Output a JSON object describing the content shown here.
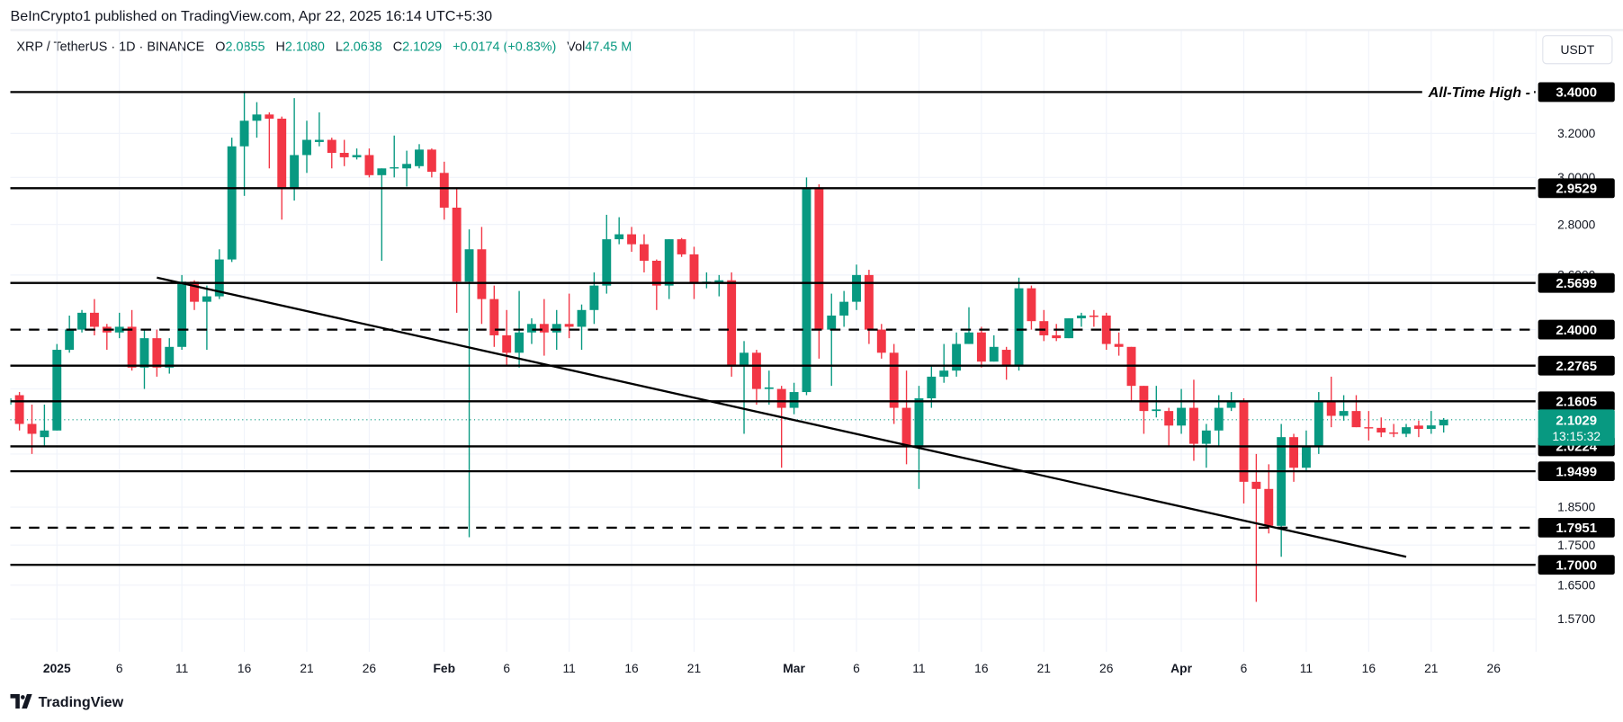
{
  "header": {
    "published": "BeInCrypto1 published on TradingView.com, Apr 22, 2025 16:14 UTC+5:30"
  },
  "legend": {
    "symbol": "XRP / TetherUS · 1D · BINANCE",
    "open_label": "O",
    "open": "2.0855",
    "high_label": "H",
    "high": "2.1080",
    "low_label": "L",
    "low": "2.0638",
    "close_label": "C",
    "close": "2.1029",
    "change": "+0.0174 (+0.83%)",
    "vol_label": "Vol",
    "vol": "47.45 M"
  },
  "currency_button": "USDT",
  "branding": "TradingView",
  "chart_data": {
    "type": "candlestick",
    "y_scale": "log",
    "ylim": [
      1.52,
      3.52
    ],
    "grid": true,
    "colors": {
      "up": "#089981",
      "down": "#F23645",
      "level": "#000000",
      "last_price": "#089981"
    },
    "x_ticks": [
      {
        "date": "2025-01-01",
        "label": "2025",
        "bold": true
      },
      {
        "date": "2025-01-06",
        "label": "6"
      },
      {
        "date": "2025-01-11",
        "label": "11"
      },
      {
        "date": "2025-01-16",
        "label": "16"
      },
      {
        "date": "2025-01-21",
        "label": "21"
      },
      {
        "date": "2025-01-26",
        "label": "26"
      },
      {
        "date": "2025-02-01",
        "label": "Feb",
        "bold": true
      },
      {
        "date": "2025-02-06",
        "label": "6"
      },
      {
        "date": "2025-02-11",
        "label": "11"
      },
      {
        "date": "2025-02-16",
        "label": "16"
      },
      {
        "date": "2025-02-21",
        "label": "21"
      },
      {
        "date": "2025-03-01",
        "label": "Mar",
        "bold": true
      },
      {
        "date": "2025-03-06",
        "label": "6"
      },
      {
        "date": "2025-03-11",
        "label": "11"
      },
      {
        "date": "2025-03-16",
        "label": "16"
      },
      {
        "date": "2025-03-21",
        "label": "21"
      },
      {
        "date": "2025-03-26",
        "label": "26"
      },
      {
        "date": "2025-04-01",
        "label": "Apr",
        "bold": true
      },
      {
        "date": "2025-04-06",
        "label": "6"
      },
      {
        "date": "2025-04-11",
        "label": "11"
      },
      {
        "date": "2025-04-16",
        "label": "16"
      },
      {
        "date": "2025-04-21",
        "label": "21"
      },
      {
        "date": "2025-04-26",
        "label": "26"
      }
    ],
    "y_ticks": [
      "3.2000",
      "3.0000",
      "2.8000",
      "2.6000",
      "1.8500",
      "1.7500",
      "1.6500",
      "1.5700"
    ],
    "levels": [
      {
        "price": 3.4,
        "label": "3.4000",
        "style": "solid",
        "annotation": "All-Time High"
      },
      {
        "price": 2.9529,
        "label": "2.9529",
        "style": "solid"
      },
      {
        "price": 2.5699,
        "label": "2.5699",
        "style": "solid"
      },
      {
        "price": 2.4,
        "label": "2.4000",
        "style": "dashed"
      },
      {
        "price": 2.2765,
        "label": "2.2765",
        "style": "solid"
      },
      {
        "price": 2.1605,
        "label": "2.1605",
        "style": "solid"
      },
      {
        "price": 2.0224,
        "label": "2.0224",
        "style": "solid"
      },
      {
        "price": 1.9499,
        "label": "1.9499",
        "style": "solid"
      },
      {
        "price": 1.7951,
        "label": "1.7951",
        "style": "dashed"
      },
      {
        "price": 1.7,
        "label": "1.7000",
        "style": "solid"
      }
    ],
    "last_price": {
      "price": 2.1029,
      "label": "2.1029",
      "countdown": "13:15:32"
    },
    "trendline": {
      "start": [
        "2025-01-09",
        2.59
      ],
      "end": [
        "2025-04-19",
        1.72
      ]
    },
    "candles_columns": [
      "date",
      "open",
      "high",
      "low",
      "close"
    ],
    "candles": [
      [
        "2024-12-28",
        2.15,
        2.18,
        2.13,
        2.17
      ],
      [
        "2024-12-29",
        2.18,
        2.19,
        2.07,
        2.09
      ],
      [
        "2024-12-30",
        2.09,
        2.15,
        2.0,
        2.06
      ],
      [
        "2024-12-31",
        2.05,
        2.15,
        2.02,
        2.07
      ],
      [
        "2025-01-01",
        2.07,
        2.35,
        2.07,
        2.33
      ],
      [
        "2025-01-02",
        2.33,
        2.45,
        2.32,
        2.4
      ],
      [
        "2025-01-03",
        2.4,
        2.47,
        2.39,
        2.46
      ],
      [
        "2025-01-04",
        2.46,
        2.51,
        2.38,
        2.41
      ],
      [
        "2025-01-05",
        2.41,
        2.42,
        2.33,
        2.39
      ],
      [
        "2025-01-06",
        2.39,
        2.46,
        2.37,
        2.41
      ],
      [
        "2025-01-07",
        2.41,
        2.47,
        2.26,
        2.27
      ],
      [
        "2025-01-08",
        2.27,
        2.4,
        2.2,
        2.37
      ],
      [
        "2025-01-09",
        2.37,
        2.4,
        2.24,
        2.27
      ],
      [
        "2025-01-10",
        2.27,
        2.37,
        2.25,
        2.34
      ],
      [
        "2025-01-11",
        2.34,
        2.6,
        2.33,
        2.575
      ],
      [
        "2025-01-12",
        2.575,
        2.58,
        2.47,
        2.5
      ],
      [
        "2025-01-13",
        2.5,
        2.56,
        2.33,
        2.52
      ],
      [
        "2025-01-14",
        2.52,
        2.7,
        2.51,
        2.66
      ],
      [
        "2025-01-15",
        2.66,
        3.18,
        2.65,
        3.14
      ],
      [
        "2025-01-16",
        3.14,
        3.4,
        2.92,
        3.26
      ],
      [
        "2025-01-17",
        3.26,
        3.35,
        3.18,
        3.29
      ],
      [
        "2025-01-18",
        3.29,
        3.3,
        3.04,
        3.27
      ],
      [
        "2025-01-19",
        3.27,
        3.28,
        2.82,
        2.955
      ],
      [
        "2025-01-20",
        2.955,
        3.37,
        2.9,
        3.1
      ],
      [
        "2025-01-21",
        3.1,
        3.26,
        3.02,
        3.17
      ],
      [
        "2025-01-22",
        3.16,
        3.3,
        3.14,
        3.17
      ],
      [
        "2025-01-23",
        3.17,
        3.18,
        3.04,
        3.11
      ],
      [
        "2025-01-24",
        3.11,
        3.17,
        3.05,
        3.09
      ],
      [
        "2025-01-25",
        3.09,
        3.13,
        3.08,
        3.1
      ],
      [
        "2025-01-26",
        3.1,
        3.13,
        3.0,
        3.01
      ],
      [
        "2025-01-27",
        3.01,
        3.04,
        2.655,
        3.04
      ],
      [
        "2025-01-28",
        3.04,
        3.19,
        3.0,
        3.045
      ],
      [
        "2025-01-29",
        3.04,
        3.12,
        2.96,
        3.06
      ],
      [
        "2025-01-30",
        3.05,
        3.15,
        3.04,
        3.125
      ],
      [
        "2025-01-31",
        3.125,
        3.13,
        3.0,
        3.025
      ],
      [
        "2025-02-01",
        3.02,
        3.07,
        2.82,
        2.87
      ],
      [
        "2025-02-02",
        2.87,
        2.95,
        2.46,
        2.575
      ],
      [
        "2025-02-03",
        2.575,
        2.78,
        1.77,
        2.7
      ],
      [
        "2025-02-04",
        2.7,
        2.79,
        2.42,
        2.51
      ],
      [
        "2025-02-05",
        2.51,
        2.56,
        2.34,
        2.38
      ],
      [
        "2025-02-06",
        2.38,
        2.47,
        2.28,
        2.32
      ],
      [
        "2025-02-07",
        2.32,
        2.54,
        2.27,
        2.39
      ],
      [
        "2025-02-08",
        2.39,
        2.44,
        2.35,
        2.42
      ],
      [
        "2025-02-09",
        2.42,
        2.51,
        2.31,
        2.39
      ],
      [
        "2025-02-10",
        2.39,
        2.47,
        2.33,
        2.42
      ],
      [
        "2025-02-11",
        2.42,
        2.53,
        2.37,
        2.41
      ],
      [
        "2025-02-12",
        2.41,
        2.49,
        2.33,
        2.47
      ],
      [
        "2025-02-13",
        2.47,
        2.61,
        2.42,
        2.56
      ],
      [
        "2025-02-14",
        2.56,
        2.84,
        2.53,
        2.74
      ],
      [
        "2025-02-15",
        2.74,
        2.83,
        2.72,
        2.76
      ],
      [
        "2025-02-16",
        2.76,
        2.79,
        2.69,
        2.72
      ],
      [
        "2025-02-17",
        2.72,
        2.76,
        2.61,
        2.655
      ],
      [
        "2025-02-18",
        2.655,
        2.66,
        2.47,
        2.56
      ],
      [
        "2025-02-19",
        2.56,
        2.74,
        2.51,
        2.74
      ],
      [
        "2025-02-20",
        2.74,
        2.745,
        2.67,
        2.68
      ],
      [
        "2025-02-21",
        2.68,
        2.71,
        2.51,
        2.57
      ],
      [
        "2025-02-22",
        2.57,
        2.61,
        2.55,
        2.575
      ],
      [
        "2025-02-23",
        2.57,
        2.6,
        2.52,
        2.58
      ],
      [
        "2025-02-24",
        2.58,
        2.61,
        2.24,
        2.28
      ],
      [
        "2025-02-25",
        2.28,
        2.36,
        2.06,
        2.32
      ],
      [
        "2025-02-26",
        2.32,
        2.33,
        2.15,
        2.2
      ],
      [
        "2025-02-27",
        2.2,
        2.26,
        2.15,
        2.205
      ],
      [
        "2025-02-28",
        2.2,
        2.21,
        1.96,
        2.14
      ],
      [
        "2025-03-01",
        2.14,
        2.22,
        2.12,
        2.19
      ],
      [
        "2025-03-02",
        2.19,
        3.0,
        2.18,
        2.95
      ],
      [
        "2025-03-03",
        2.95,
        2.97,
        2.3,
        2.4
      ],
      [
        "2025-03-04",
        2.4,
        2.53,
        2.21,
        2.45
      ],
      [
        "2025-03-05",
        2.45,
        2.54,
        2.41,
        2.5
      ],
      [
        "2025-03-06",
        2.5,
        2.64,
        2.47,
        2.6
      ],
      [
        "2025-03-07",
        2.6,
        2.62,
        2.35,
        2.4
      ],
      [
        "2025-03-08",
        2.4,
        2.42,
        2.3,
        2.32
      ],
      [
        "2025-03-09",
        2.32,
        2.35,
        2.09,
        2.14
      ],
      [
        "2025-03-10",
        2.14,
        2.26,
        1.97,
        2.02
      ],
      [
        "2025-03-11",
        2.02,
        2.21,
        1.9,
        2.17
      ],
      [
        "2025-03-12",
        2.17,
        2.28,
        2.14,
        2.24
      ],
      [
        "2025-03-13",
        2.24,
        2.35,
        2.22,
        2.26
      ],
      [
        "2025-03-14",
        2.26,
        2.39,
        2.24,
        2.35
      ],
      [
        "2025-03-15",
        2.35,
        2.48,
        2.35,
        2.39
      ],
      [
        "2025-03-16",
        2.39,
        2.41,
        2.27,
        2.29
      ],
      [
        "2025-03-17",
        2.29,
        2.38,
        2.29,
        2.34
      ],
      [
        "2025-03-18",
        2.33,
        2.34,
        2.23,
        2.28
      ],
      [
        "2025-03-19",
        2.28,
        2.59,
        2.26,
        2.55
      ],
      [
        "2025-03-20",
        2.55,
        2.56,
        2.4,
        2.43
      ],
      [
        "2025-03-21",
        2.43,
        2.47,
        2.36,
        2.38
      ],
      [
        "2025-03-22",
        2.38,
        2.42,
        2.36,
        2.37
      ],
      [
        "2025-03-23",
        2.37,
        2.44,
        2.37,
        2.44
      ],
      [
        "2025-03-24",
        2.44,
        2.46,
        2.41,
        2.45
      ],
      [
        "2025-03-25",
        2.45,
        2.47,
        2.41,
        2.445
      ],
      [
        "2025-03-26",
        2.45,
        2.46,
        2.33,
        2.35
      ],
      [
        "2025-03-27",
        2.35,
        2.39,
        2.31,
        2.34
      ],
      [
        "2025-03-28",
        2.34,
        2.34,
        2.16,
        2.21
      ],
      [
        "2025-03-29",
        2.21,
        2.21,
        2.06,
        2.13
      ],
      [
        "2025-03-30",
        2.13,
        2.21,
        2.11,
        2.135
      ],
      [
        "2025-03-31",
        2.13,
        2.14,
        2.02,
        2.085
      ],
      [
        "2025-04-01",
        2.085,
        2.2,
        2.06,
        2.14
      ],
      [
        "2025-04-02",
        2.14,
        2.23,
        1.98,
        2.03
      ],
      [
        "2025-04-03",
        2.03,
        2.09,
        1.96,
        2.07
      ],
      [
        "2025-04-04",
        2.07,
        2.18,
        2.02,
        2.14
      ],
      [
        "2025-04-05",
        2.14,
        2.19,
        2.13,
        2.16
      ],
      [
        "2025-04-06",
        2.16,
        2.17,
        1.86,
        1.92
      ],
      [
        "2025-04-07",
        1.92,
        2.0,
        1.61,
        1.9
      ],
      [
        "2025-04-08",
        1.9,
        1.97,
        1.78,
        1.8
      ],
      [
        "2025-04-09",
        1.8,
        2.09,
        1.72,
        2.05
      ],
      [
        "2025-04-10",
        2.05,
        2.06,
        1.92,
        1.96
      ],
      [
        "2025-04-11",
        1.96,
        2.07,
        1.95,
        2.02
      ],
      [
        "2025-04-12",
        2.02,
        2.19,
        2.0,
        2.16
      ],
      [
        "2025-04-13",
        2.16,
        2.24,
        2.08,
        2.115
      ],
      [
        "2025-04-14",
        2.115,
        2.18,
        2.1,
        2.13
      ],
      [
        "2025-04-15",
        2.13,
        2.18,
        2.08,
        2.08
      ],
      [
        "2025-04-16",
        2.08,
        2.13,
        2.04,
        2.078
      ],
      [
        "2025-04-17",
        2.078,
        2.11,
        2.05,
        2.064
      ],
      [
        "2025-04-18",
        2.064,
        2.09,
        2.05,
        2.06
      ],
      [
        "2025-04-19",
        2.06,
        2.09,
        2.05,
        2.08
      ],
      [
        "2025-04-20",
        2.085,
        2.1,
        2.05,
        2.075
      ],
      [
        "2025-04-21",
        2.075,
        2.13,
        2.06,
        2.0855
      ],
      [
        "2025-04-22",
        2.0855,
        2.108,
        2.0638,
        2.1029
      ]
    ]
  }
}
